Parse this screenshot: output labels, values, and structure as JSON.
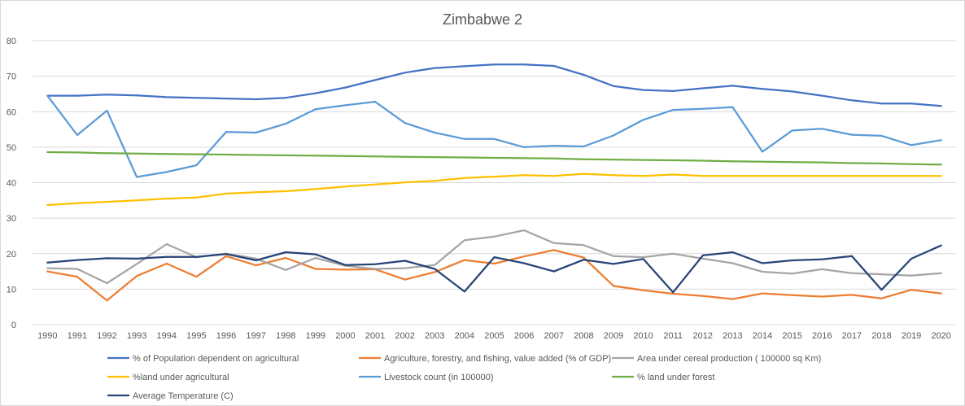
{
  "chart_data": {
    "type": "line",
    "title": "Zimbabwe 2",
    "xlabel": "",
    "ylabel": "",
    "ylim": [
      0,
      80
    ],
    "yticks": [
      "0",
      "10",
      "20",
      "30",
      "40",
      "50",
      "60",
      "70",
      "80"
    ],
    "grid": true,
    "legend_position": "bottom",
    "categories": [
      "1990",
      "1991",
      "1992",
      "1993",
      "1994",
      "1995",
      "1996",
      "1997",
      "1998",
      "1999",
      "2000",
      "2001",
      "2002",
      "2003",
      "2004",
      "2005",
      "2006",
      "2007",
      "2008",
      "2009",
      "2010",
      "2011",
      "2012",
      "2013",
      "2014",
      "2015",
      "2016",
      "2017",
      "2018",
      "2019",
      "2020"
    ],
    "series": [
      {
        "name": "% of Population dependent on agricultural",
        "color": "#4472c4",
        "values": [
          64.5,
          64.5,
          64.8,
          64.6,
          64.1,
          63.9,
          63.7,
          63.5,
          63.9,
          65.2,
          66.8,
          68.9,
          71.0,
          72.3,
          72.8,
          73.3,
          73.3,
          72.9,
          70.4,
          67.2,
          66.1,
          65.8,
          66.6,
          67.3,
          66.4,
          65.7,
          64.5,
          63.2,
          62.3,
          62.3,
          61.6
        ]
      },
      {
        "name": "Agriculture, forestry, and fishing, value added (% of GDP)",
        "color": "#ed7d31",
        "values": [
          15.0,
          13.5,
          6.8,
          13.7,
          17.2,
          13.5,
          19.3,
          16.7,
          18.8,
          15.7,
          15.5,
          15.6,
          12.7,
          14.8,
          18.2,
          17.2,
          19.2,
          21.0,
          18.9,
          10.9,
          9.7,
          8.7,
          8.1,
          7.2,
          8.8,
          8.3,
          7.9,
          8.4,
          7.4,
          9.8,
          8.8
        ]
      },
      {
        "name": "Area under cereal production ( 100000 sq Km)",
        "color": "#a5a5a5",
        "values": [
          15.9,
          15.7,
          11.7,
          17.1,
          22.7,
          19.0,
          20.0,
          18.6,
          15.4,
          18.8,
          16.6,
          15.7,
          15.9,
          16.8,
          23.8,
          24.8,
          26.6,
          23.0,
          22.4,
          19.3,
          19.0,
          20.0,
          18.6,
          17.3,
          14.9,
          14.4,
          15.6,
          14.5,
          14.2,
          13.8,
          14.5
        ]
      },
      {
        "name": "%land under agricultural",
        "color": "#ffc000",
        "values": [
          33.7,
          34.2,
          34.6,
          35.0,
          35.5,
          35.8,
          36.9,
          37.3,
          37.6,
          38.2,
          38.9,
          39.5,
          40.1,
          40.5,
          41.3,
          41.7,
          42.1,
          41.9,
          42.5,
          42.1,
          41.9,
          42.3,
          41.9,
          41.9,
          41.9,
          41.9,
          41.9,
          41.9,
          41.9,
          41.9,
          41.9
        ]
      },
      {
        "name": "Livestock count (in 100000)",
        "color": "#5b9bd5",
        "values": [
          64.5,
          53.4,
          60.3,
          41.6,
          43.0,
          44.9,
          54.3,
          54.1,
          56.6,
          60.7,
          61.8,
          62.8,
          56.8,
          54.1,
          52.3,
          52.3,
          50.0,
          50.4,
          50.2,
          53.3,
          57.7,
          60.5,
          60.8,
          61.3,
          48.7,
          54.7,
          55.2,
          53.5,
          53.2,
          50.6,
          52.0
        ]
      },
      {
        "name": "% land under forest",
        "color": "#70ad47",
        "values": [
          48.6,
          48.5,
          48.3,
          48.2,
          48.1,
          48.0,
          47.9,
          47.8,
          47.7,
          47.6,
          47.5,
          47.4,
          47.3,
          47.2,
          47.1,
          47.0,
          46.9,
          46.8,
          46.6,
          46.5,
          46.4,
          46.3,
          46.2,
          46.0,
          45.9,
          45.8,
          45.7,
          45.5,
          45.4,
          45.2,
          45.1
        ]
      },
      {
        "name": "Average Temperature (C)",
        "color": "#264478",
        "values": [
          17.5,
          18.2,
          18.7,
          18.6,
          19.1,
          19.1,
          19.9,
          18.1,
          20.4,
          19.8,
          16.8,
          17.0,
          18.0,
          15.7,
          9.3,
          19.0,
          17.3,
          15.0,
          18.3,
          17.1,
          18.5,
          9.1,
          19.5,
          20.4,
          17.3,
          18.1,
          18.4,
          19.3,
          9.8,
          18.6,
          22.3
        ]
      }
    ]
  }
}
